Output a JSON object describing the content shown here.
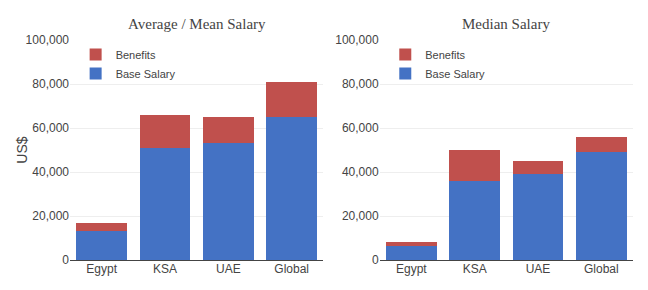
{
  "chart_data": [
    {
      "type": "bar",
      "title": "Average / Mean Salary",
      "ylabel": "US$",
      "categories": [
        "Egypt",
        "KSA",
        "UAE",
        "Global"
      ],
      "series": [
        {
          "name": "Base Salary",
          "color": "#4472C4",
          "values": [
            13000,
            51000,
            53000,
            65000
          ]
        },
        {
          "name": "Benefits",
          "color": "#C0504D",
          "values": [
            4000,
            15000,
            12000,
            16000
          ]
        }
      ],
      "stacked": true,
      "ylim": [
        0,
        100000
      ],
      "yticks": [
        0,
        {
          "value": 20000,
          "label": "20,000"
        },
        {
          "value": 40000,
          "label": "40,000"
        },
        {
          "value": 60000,
          "label": "60,000"
        },
        {
          "value": 80000,
          "label": "80,000"
        },
        {
          "value": 100000,
          "label": "100,000"
        }
      ],
      "grid": true,
      "legend": "upper left"
    },
    {
      "type": "bar",
      "title": "Median Salary",
      "categories": [
        "Egypt",
        "KSA",
        "UAE",
        "Global"
      ],
      "series": [
        {
          "name": "Base Salary",
          "color": "#4472C4",
          "values": [
            6500,
            36000,
            39000,
            49000
          ]
        },
        {
          "name": "Benefits",
          "color": "#C0504D",
          "values": [
            1500,
            14000,
            6000,
            7000
          ]
        }
      ],
      "stacked": true,
      "ylim": [
        0,
        100000
      ],
      "yticks": [
        0,
        {
          "value": 20000,
          "label": "20,000"
        },
        {
          "value": 40000,
          "label": "40,000"
        },
        {
          "value": 60000,
          "label": "60,000"
        },
        {
          "value": 80000,
          "label": "80,000"
        },
        {
          "value": 100000,
          "label": "100,000"
        }
      ],
      "grid": true,
      "legend": "upper left"
    }
  ]
}
